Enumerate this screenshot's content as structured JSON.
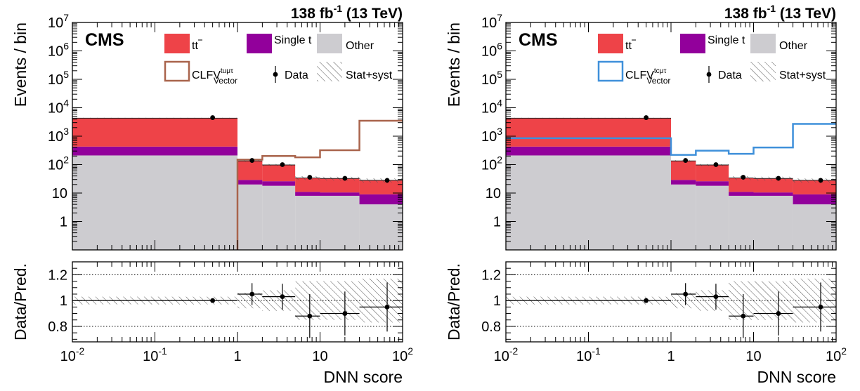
{
  "chart_data": [
    {
      "type": "bar",
      "panel": "left",
      "lumi_label": "138 fb",
      "lumi_sup": "-1",
      "energy_label": "(13 TeV)",
      "experiment": "CMS",
      "xlabel": "DNN score",
      "ylabel": "Events / bin",
      "ratio_ylabel": "Data/Pred.",
      "x_log": true,
      "y_log": true,
      "xlim": [
        0.01,
        100
      ],
      "ylim": [
        0.1,
        10000000
      ],
      "ratio_ylim": [
        0.68,
        1.3
      ],
      "x_ticks": [
        "10^-2",
        "10^-1",
        "1",
        "10",
        "10^2"
      ],
      "y_ticks": [
        "1",
        "10",
        "10^2",
        "10^3",
        "10^4",
        "10^5",
        "10^6",
        "10^7"
      ],
      "ratio_ticks": [
        "0.8",
        "1",
        "1.2"
      ],
      "bin_edges": [
        0.01,
        1,
        2,
        5,
        10,
        30,
        100
      ],
      "stack": [
        {
          "name": "Other",
          "color": "#cdccd0",
          "values": [
            210,
            20,
            18,
            8,
            8,
            4
          ]
        },
        {
          "name": "Single t",
          "color": "#92009b",
          "values": [
            220,
            9,
            8,
            3,
            2.5,
            5
          ]
        },
        {
          "name": "tt",
          "color": "#ee4348",
          "values": [
            3870,
            106,
            71,
            23,
            22,
            19
          ]
        }
      ],
      "signal": {
        "name": "CLFV",
        "superscript": "tuμτ",
        "subscript": "Vector",
        "color": "#a9644c",
        "values": [
          null,
          150,
          200,
          180,
          320,
          3500
        ]
      },
      "data": {
        "name": "Data",
        "x": [
          0.5,
          1.5,
          3.5,
          7.5,
          20,
          65
        ],
        "y": [
          4500,
          140,
          100,
          36,
          33,
          28
        ]
      },
      "uncertainty_label": "Stat+syst",
      "uncertainty_rel": [
        0.03,
        0.06,
        0.08,
        0.15,
        0.15,
        0.17
      ],
      "ratio": {
        "x": [
          0.5,
          1.5,
          3.5,
          7.5,
          20,
          65
        ],
        "y": [
          1.0,
          1.05,
          1.03,
          0.88,
          0.9,
          0.95
        ],
        "err": [
          0.015,
          0.085,
          0.1,
          0.17,
          0.17,
          0.19
        ]
      }
    },
    {
      "type": "bar",
      "panel": "right",
      "lumi_label": "138 fb",
      "lumi_sup": "-1",
      "energy_label": "(13 TeV)",
      "experiment": "CMS",
      "xlabel": "DNN score",
      "ylabel": "Events / bin",
      "ratio_ylabel": "Data/Pred.",
      "x_log": true,
      "y_log": true,
      "xlim": [
        0.01,
        100
      ],
      "ylim": [
        0.1,
        10000000
      ],
      "ratio_ylim": [
        0.68,
        1.3
      ],
      "x_ticks": [
        "10^-2",
        "10^-1",
        "1",
        "10",
        "10^2"
      ],
      "y_ticks": [
        "1",
        "10",
        "10^2",
        "10^3",
        "10^4",
        "10^5",
        "10^6",
        "10^7"
      ],
      "ratio_ticks": [
        "0.8",
        "1",
        "1.2"
      ],
      "bin_edges": [
        0.01,
        1,
        2,
        5,
        10,
        30,
        100
      ],
      "stack": [
        {
          "name": "Other",
          "color": "#cdccd0",
          "values": [
            210,
            20,
            18,
            8,
            8,
            4
          ]
        },
        {
          "name": "Single t",
          "color": "#92009b",
          "values": [
            220,
            9,
            8,
            3,
            2.5,
            5
          ]
        },
        {
          "name": "tt",
          "color": "#ee4348",
          "values": [
            3870,
            106,
            71,
            23,
            22,
            19
          ]
        }
      ],
      "signal": {
        "name": "CLFV",
        "superscript": "tcμτ",
        "subscript": "Vector",
        "color": "#3f90da",
        "values": [
          850,
          220,
          310,
          240,
          400,
          2700
        ]
      },
      "data": {
        "name": "Data",
        "x": [
          0.5,
          1.5,
          3.5,
          7.5,
          20,
          65
        ],
        "y": [
          4500,
          140,
          100,
          36,
          33,
          28
        ]
      },
      "uncertainty_label": "Stat+syst",
      "uncertainty_rel": [
        0.03,
        0.06,
        0.08,
        0.15,
        0.15,
        0.17
      ],
      "ratio": {
        "x": [
          0.5,
          1.5,
          3.5,
          7.5,
          20,
          65
        ],
        "y": [
          1.0,
          1.05,
          1.03,
          0.88,
          0.9,
          0.95
        ],
        "err": [
          0.015,
          0.085,
          0.1,
          0.17,
          0.17,
          0.19
        ]
      }
    }
  ]
}
